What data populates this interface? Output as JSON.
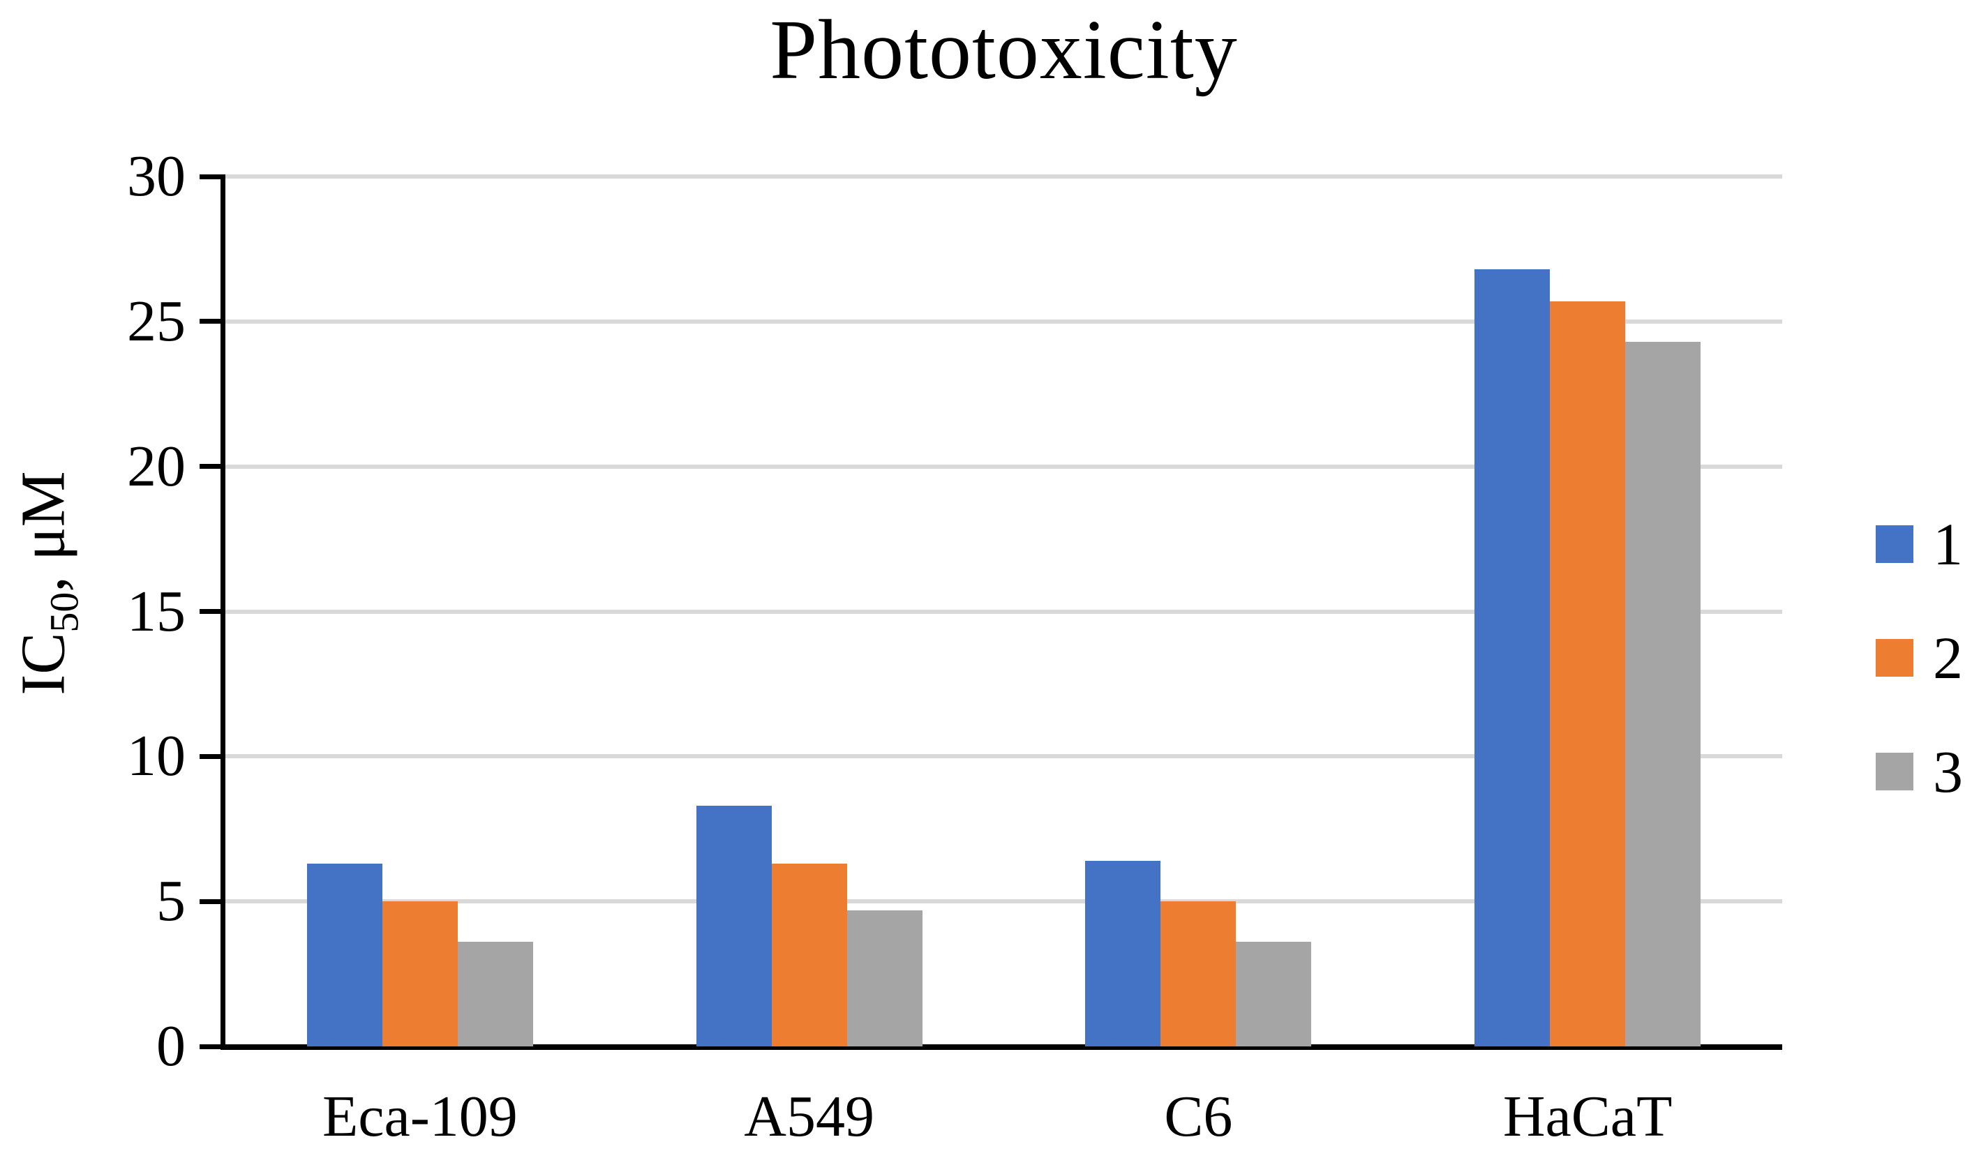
{
  "title": "Phototoxicity",
  "y_axis": {
    "prefix": "IC",
    "subscript": "50",
    "suffix": ", μM",
    "ticks": [
      0,
      5,
      10,
      15,
      20,
      25,
      30
    ]
  },
  "legend": {
    "items": [
      {
        "label": "1",
        "color": "#4472C4"
      },
      {
        "label": "2",
        "color": "#ED7D31"
      },
      {
        "label": "3",
        "color": "#A5A5A5"
      }
    ]
  },
  "chart_data": {
    "type": "bar",
    "title": "Phototoxicity",
    "categories": [
      "Eca-109",
      "A549",
      "C6",
      "HaCaT"
    ],
    "series": [
      {
        "name": "1",
        "color": "#4472C4",
        "values": [
          6.3,
          8.3,
          6.4,
          26.8
        ]
      },
      {
        "name": "2",
        "color": "#ED7D31",
        "values": [
          5.0,
          6.3,
          5.0,
          25.7
        ]
      },
      {
        "name": "3",
        "color": "#A5A5A5",
        "values": [
          3.6,
          4.7,
          3.6,
          24.3
        ]
      }
    ],
    "xlabel": "",
    "ylabel": "IC50, μM",
    "ylim": [
      0,
      30
    ],
    "ytick_step": 5,
    "grid": true,
    "gridline_color": "#D9D9D9",
    "axis_color": "#000000",
    "legend_position": "right"
  }
}
